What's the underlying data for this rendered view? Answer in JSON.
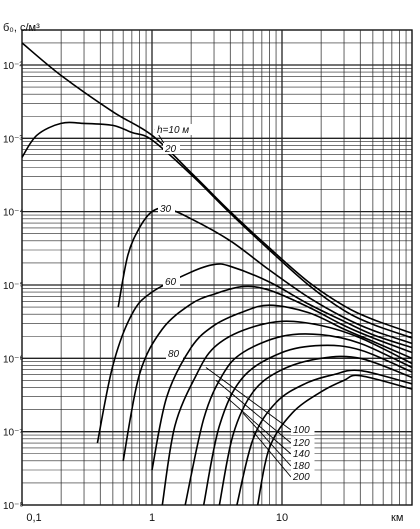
{
  "chart_data": {
    "type": "line",
    "title": "",
    "ylabel": "б₀, c/м³",
    "xlabel": "км",
    "x_scale": "log",
    "y_scale": "log",
    "xlim": [
      0.1,
      100
    ],
    "ylim": [
      1e-08,
      0.03
    ],
    "grid": true,
    "x_ticks": [
      {
        "value": 0.1,
        "label": "0,1"
      },
      {
        "value": 1,
        "label": "1"
      },
      {
        "value": 10,
        "label": "10"
      }
    ],
    "y_ticks": [
      {
        "value": 0.01,
        "label": "10⁻²"
      },
      {
        "value": 0.001,
        "label": "10⁻³"
      },
      {
        "value": 0.0001,
        "label": "10⁻⁴"
      },
      {
        "value": 1e-05,
        "label": "10⁻⁵"
      },
      {
        "value": 1e-06,
        "label": "10⁻⁶"
      },
      {
        "value": 1e-07,
        "label": "10⁻⁷"
      },
      {
        "value": 1e-08,
        "label": "10⁻⁸"
      }
    ],
    "series": [
      {
        "name": "h=10 м",
        "points": [
          [
            0.1,
            0.02
          ],
          [
            0.2,
            0.0072
          ],
          [
            0.5,
            0.0023
          ],
          [
            1,
            0.0011
          ],
          [
            2,
            0.00034
          ],
          [
            4,
            0.0001
          ],
          [
            8,
            3.2e-05
          ],
          [
            16,
            1.1e-05
          ],
          [
            30,
            5.2e-06
          ],
          [
            50,
            3.4e-06
          ],
          [
            100,
            2.2e-06
          ]
        ]
      },
      {
        "name": "20",
        "points": [
          [
            0.1,
            0.00055
          ],
          [
            0.13,
            0.0011
          ],
          [
            0.2,
            0.0016
          ],
          [
            0.3,
            0.0016
          ],
          [
            0.5,
            0.0015
          ],
          [
            0.7,
            0.0012
          ],
          [
            1,
            0.00095
          ],
          [
            2,
            0.00032
          ],
          [
            4,
            9.5e-05
          ],
          [
            8,
            3e-05
          ],
          [
            16,
            1e-05
          ],
          [
            30,
            4.5e-06
          ],
          [
            50,
            2.9e-06
          ],
          [
            100,
            1.9e-06
          ]
        ]
      },
      {
        "name": "30",
        "points": [
          [
            0.55,
            5e-06
          ],
          [
            0.65,
            2.5e-05
          ],
          [
            0.8,
            6e-05
          ],
          [
            1,
            0.0001
          ],
          [
            1.3,
            0.00011
          ],
          [
            2,
            8e-05
          ],
          [
            4,
            4e-05
          ],
          [
            8,
            1.6e-05
          ],
          [
            16,
            6.8e-06
          ],
          [
            30,
            3.6e-06
          ],
          [
            50,
            2.4e-06
          ],
          [
            100,
            1.6e-06
          ]
        ]
      },
      {
        "name": "60",
        "points": [
          [
            0.38,
            7e-08
          ],
          [
            0.5,
            8e-07
          ],
          [
            0.7,
            4e-06
          ],
          [
            1,
            8e-06
          ],
          [
            2,
            1.5e-05
          ],
          [
            3,
            1.9e-05
          ],
          [
            4,
            1.8e-05
          ],
          [
            8,
            1.1e-05
          ],
          [
            16,
            5.5e-06
          ],
          [
            30,
            3.2e-06
          ],
          [
            50,
            2.1e-06
          ],
          [
            100,
            1.4e-06
          ]
        ]
      },
      {
        "name": "",
        "points": [
          [
            0.6,
            4e-08
          ],
          [
            0.8,
            6e-07
          ],
          [
            1.2,
            2.5e-06
          ],
          [
            2,
            5.5e-06
          ],
          [
            3,
            7.5e-06
          ],
          [
            5,
            9.5e-06
          ],
          [
            8,
            8.5e-06
          ],
          [
            16,
            5e-06
          ],
          [
            30,
            2.8e-06
          ],
          [
            50,
            1.9e-06
          ],
          [
            100,
            1.2e-06
          ]
        ]
      },
      {
        "name": "80",
        "points": [
          [
            1,
            3e-08
          ],
          [
            1.3,
            3e-07
          ],
          [
            2,
            1.4e-06
          ],
          [
            3,
            2.8e-06
          ],
          [
            5,
            4.3e-06
          ],
          [
            8,
            5.3e-06
          ],
          [
            16,
            4.2e-06
          ],
          [
            30,
            2.5e-06
          ],
          [
            50,
            1.7e-06
          ],
          [
            100,
            1e-06
          ]
        ]
      },
      {
        "name": "",
        "points": [
          [
            1.2,
            1e-08
          ],
          [
            1.5,
            1.2e-07
          ],
          [
            2.2,
            6e-07
          ],
          [
            3,
            1.4e-06
          ],
          [
            5,
            2.4e-06
          ],
          [
            10,
            3.2e-06
          ],
          [
            20,
            2.8e-06
          ],
          [
            40,
            1.9e-06
          ],
          [
            100,
            8.5e-07
          ]
        ]
      },
      {
        "name": "100",
        "points": [
          [
            1.8,
            1e-08
          ],
          [
            2.5,
            1.5e-07
          ],
          [
            3.5,
            6e-07
          ],
          [
            5,
            1.2e-06
          ],
          [
            10,
            2e-06
          ],
          [
            20,
            2.1e-06
          ],
          [
            40,
            1.6e-06
          ],
          [
            100,
            7.5e-07
          ]
        ]
      },
      {
        "name": "120",
        "points": [
          [
            2.5,
            1e-08
          ],
          [
            3.3,
            1.2e-07
          ],
          [
            5,
            5.5e-07
          ],
          [
            10,
            1.2e-06
          ],
          [
            20,
            1.5e-06
          ],
          [
            40,
            1.3e-06
          ],
          [
            100,
            6.5e-07
          ]
        ]
      },
      {
        "name": "140",
        "points": [
          [
            3.3,
            1e-08
          ],
          [
            4.2,
            9e-08
          ],
          [
            6,
            3.5e-07
          ],
          [
            10,
            7e-07
          ],
          [
            20,
            1e-06
          ],
          [
            40,
            1e-06
          ],
          [
            100,
            5.5e-07
          ]
        ]
      },
      {
        "name": "180",
        "points": [
          [
            4.5,
            1e-08
          ],
          [
            6,
            8e-08
          ],
          [
            9,
            2.5e-07
          ],
          [
            15,
            4.5e-07
          ],
          [
            25,
            6e-07
          ],
          [
            40,
            6.8e-07
          ],
          [
            100,
            4.5e-07
          ]
        ]
      },
      {
        "name": "200",
        "points": [
          [
            6.5,
            1e-08
          ],
          [
            8,
            6e-08
          ],
          [
            12,
            1.8e-07
          ],
          [
            20,
            3.5e-07
          ],
          [
            30,
            5e-07
          ],
          [
            40,
            5.8e-07
          ],
          [
            100,
            3.8e-07
          ]
        ]
      }
    ]
  }
}
